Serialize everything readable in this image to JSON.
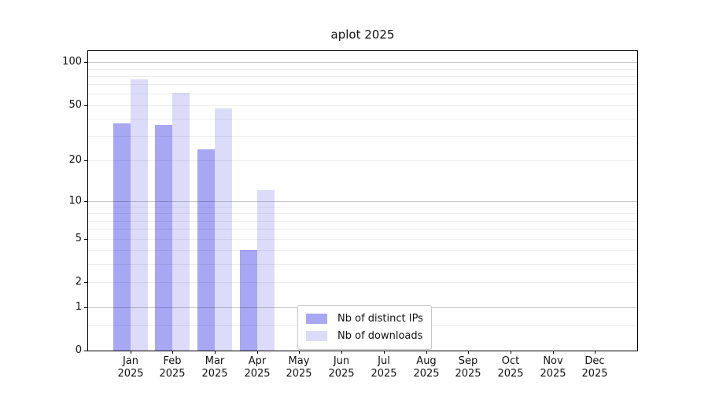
{
  "chart_data": {
    "type": "bar",
    "title": "aplot 2025",
    "categories": [
      "Jan",
      "Feb",
      "Mar",
      "Apr",
      "May",
      "Jun",
      "Jul",
      "Aug",
      "Sep",
      "Oct",
      "Nov",
      "Dec"
    ],
    "xtick_year": "2025",
    "series": [
      {
        "name": "Nb of distinct IPs",
        "color": "#a7a7f4",
        "values": [
          37,
          36,
          24,
          4,
          0,
          0,
          0,
          0,
          0,
          0,
          0,
          0
        ]
      },
      {
        "name": "Nb of downloads",
        "color": "#dcdcfa",
        "values": [
          76,
          61,
          47,
          12,
          0,
          0,
          0,
          0,
          0,
          0,
          0,
          0
        ]
      }
    ],
    "yscale": "log1p",
    "ylim": [
      0,
      120
    ],
    "yticks": [
      0,
      1,
      2,
      5,
      10,
      20,
      50,
      100
    ],
    "grid_major": [
      1,
      10,
      100
    ],
    "grid_minor": [
      0.5,
      2,
      3,
      4,
      5,
      6,
      7,
      8,
      9,
      20,
      30,
      40,
      50,
      60,
      70,
      80,
      90
    ],
    "grid_color_major": "rgba(0,0,0,0.22)",
    "grid_color_minor": "rgba(0,0,0,0.07)",
    "legend_position": "lower-center-inside",
    "grid": "on"
  }
}
